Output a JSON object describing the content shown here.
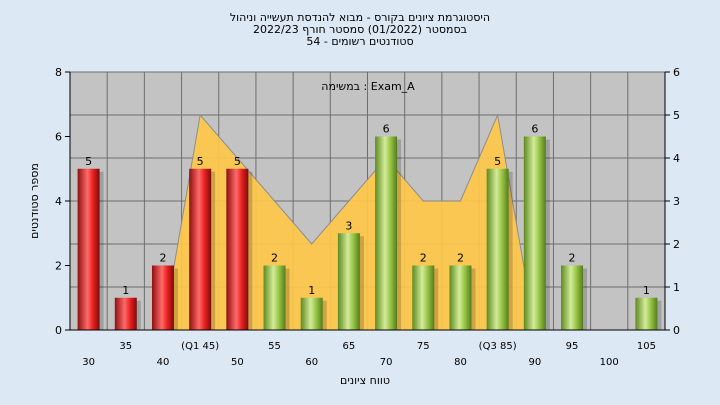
{
  "chart_data": {
    "type": "bar",
    "title_lines": [
      "היסטוגרמת ציונים בקורס - מבוא להנדסת תעשייה וניהול",
      "בסמסטר  (01/2022)  סמסטר חורף 2022/23",
      "סטודנטים רשומים - 54"
    ],
    "annotation": "במשימה : Exam_A",
    "xlabel": "טווח ציונים",
    "ylabel": "מספר סטודנטים",
    "ylim": [
      0,
      8
    ],
    "yticks": [
      0,
      2,
      4,
      6,
      8
    ],
    "y2lim": [
      0,
      6
    ],
    "y2ticks": [
      0,
      1,
      2,
      3,
      4,
      5,
      6
    ],
    "grid": true,
    "categories": [
      "30",
      "35",
      "40",
      "(Q1 45)",
      "50",
      "55",
      "60",
      "65",
      "70",
      "75",
      "80",
      "(Q3 85)",
      "90",
      "95",
      "100",
      "105"
    ],
    "values": [
      5,
      1,
      2,
      5,
      5,
      2,
      1,
      3,
      6,
      2,
      2,
      5,
      6,
      2,
      0,
      1
    ],
    "area_series": [
      0,
      0,
      0,
      5,
      4,
      3,
      2,
      3,
      4,
      3,
      3,
      5,
      0,
      0,
      0,
      0
    ],
    "colors": {
      "background": "#dce8f4",
      "plot_background": "#c3c3c3",
      "fail_bar": "#e8201e",
      "pass_bar": "#8ab83a",
      "area_fill": "#ffc84a"
    }
  }
}
